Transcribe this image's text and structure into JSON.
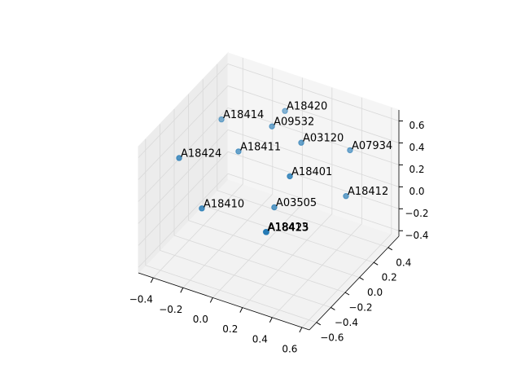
{
  "chart_data": {
    "type": "scatter3d",
    "labels": [
      "A18420",
      "A18414",
      "A09532",
      "A03120",
      "A07934",
      "A18424",
      "A18411",
      "A18401",
      "A18412",
      "A18410",
      "A03505",
      "A18423",
      "A18425",
      "A18413"
    ],
    "x": [
      0.004,
      -0.375,
      0.013,
      0.258,
      0.538,
      -0.467,
      -0.164,
      0.326,
      0.559,
      -0.266,
      0.125,
      0.022,
      0.024,
      0.02
    ],
    "y": [
      0.3,
      0.2,
      0.1,
      0.0,
      0.1,
      -0.2,
      0.0,
      -0.3,
      0.0,
      -0.3,
      -0.1,
      0.0,
      0.0,
      0.0
    ],
    "z": [
      0.57,
      0.39,
      0.57,
      0.6,
      0.59,
      0.27,
      0.33,
      0.53,
      0.25,
      -0.03,
      0.02,
      -0.32,
      -0.32,
      -0.32
    ],
    "color": "#1f77b4",
    "xlim": [
      -0.5,
      0.65
    ],
    "ylim": [
      -0.7,
      0.55
    ],
    "zlim": [
      -0.45,
      0.7
    ],
    "xticks": [
      {
        "value": -0.4,
        "label": "−0.4"
      },
      {
        "value": -0.2,
        "label": "−0.2"
      },
      {
        "value": 0,
        "label": "0.0"
      },
      {
        "value": 0.2,
        "label": "0.2"
      },
      {
        "value": 0.4,
        "label": "0.4"
      },
      {
        "value": 0.6,
        "label": "0.6"
      }
    ],
    "yticks": [
      {
        "value": -0.6,
        "label": "−0.6"
      },
      {
        "value": -0.4,
        "label": "−0.4"
      },
      {
        "value": -0.2,
        "label": "−0.2"
      },
      {
        "value": 0,
        "label": "0.0"
      },
      {
        "value": 0.2,
        "label": "0.2"
      },
      {
        "value": 0.4,
        "label": "0.4"
      }
    ],
    "zticks": [
      {
        "value": -0.4,
        "label": "−0.4"
      },
      {
        "value": -0.2,
        "label": "−0.2"
      },
      {
        "value": 0,
        "label": "0.0"
      },
      {
        "value": 0.2,
        "label": "0.2"
      },
      {
        "value": 0.4,
        "label": "0.4"
      },
      {
        "value": 0.6,
        "label": "0.6"
      }
    ],
    "grid": true
  }
}
